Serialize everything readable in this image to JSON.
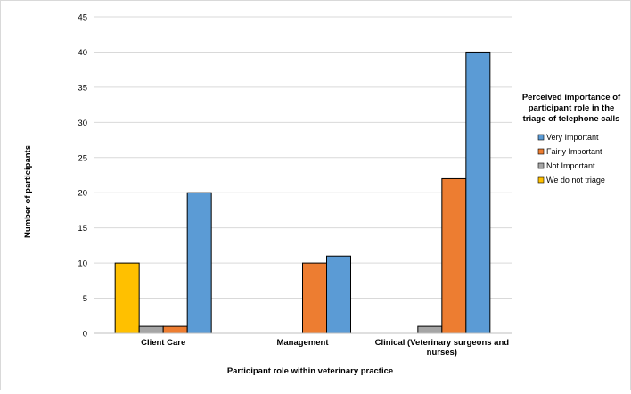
{
  "chart_data": {
    "type": "bar",
    "categories": [
      "Client Care",
      "Management",
      "Clinical (Veterinary surgeons and nurses)"
    ],
    "category_label_lines": [
      [
        "Client Care"
      ],
      [
        "Management"
      ],
      [
        "Clinical (Veterinary surgeons and",
        "nurses)"
      ]
    ],
    "series": [
      {
        "name": "We do not triage",
        "color": "#ffc000",
        "values": [
          10,
          0,
          0
        ]
      },
      {
        "name": "Not Important",
        "color": "#a5a5a5",
        "values": [
          1,
          0,
          1
        ]
      },
      {
        "name": "Fairly Important",
        "color": "#ed7d31",
        "values": [
          1,
          10,
          22
        ]
      },
      {
        "name": "Very Important",
        "color": "#5b9bd5",
        "values": [
          20,
          11,
          40
        ]
      }
    ],
    "xlabel": "Participant role within veterinary practice",
    "ylabel": "Number of participants",
    "ylim": [
      0,
      45
    ],
    "yticks": [
      0,
      5,
      10,
      15,
      20,
      25,
      30,
      35,
      40,
      45
    ],
    "grid": true,
    "legend": {
      "placement": "right",
      "title_lines": [
        "Perceived importance of",
        "participant role in the",
        "triage of telephone calls"
      ],
      "order": [
        "Very Important",
        "Fairly Important",
        "Not Important",
        "We do not triage"
      ]
    }
  }
}
